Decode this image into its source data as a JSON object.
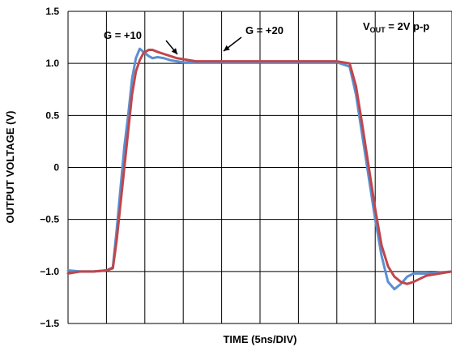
{
  "chart_data": {
    "type": "line",
    "xlabel": "TIME (5ns/DIV)",
    "ylabel": "OUTPUT VOLTAGE (V)",
    "ylim": [
      -1.5,
      1.5
    ],
    "yticks": [
      "1.5",
      "1.0",
      "0.5",
      "0",
      "−0.5",
      "−1.0",
      "−1.5"
    ],
    "x_divisions": 10,
    "y_divisions": 6,
    "grid": true,
    "annotation_vout": "2V p-p",
    "series": [
      {
        "name": "G = +10",
        "color": "#5b8fd0",
        "x": [
          0,
          1,
          2,
          3,
          3.5,
          3.8,
          4.1,
          4.4,
          4.7,
          5.0,
          5.3,
          5.6,
          5.9,
          6.3,
          6.6,
          7.0,
          7.5,
          8.0,
          8.5,
          9.0,
          9.5,
          10,
          11,
          12,
          13,
          14,
          15,
          16,
          17,
          18,
          19,
          20,
          21,
          22,
          22.5,
          23,
          23.5,
          24,
          24.5,
          25,
          25.5,
          26,
          26.5,
          27,
          27.5,
          28,
          29,
          30
        ],
        "y": [
          -0.99,
          -1.0,
          -1.0,
          -0.99,
          -0.96,
          -0.6,
          -0.2,
          0.2,
          0.5,
          0.85,
          1.05,
          1.14,
          1.11,
          1.07,
          1.05,
          1.06,
          1.05,
          1.03,
          1.02,
          1.01,
          1.01,
          1.01,
          1.01,
          1.01,
          1.01,
          1.01,
          1.01,
          1.01,
          1.01,
          1.01,
          1.01,
          1.01,
          1.01,
          0.97,
          0.7,
          0.3,
          -0.1,
          -0.5,
          -0.85,
          -1.1,
          -1.17,
          -1.12,
          -1.05,
          -1.02,
          -1.02,
          -1.02,
          -1.01,
          -1.0
        ]
      },
      {
        "name": "G = +20",
        "color": "#c0464b",
        "x": [
          0,
          1,
          2,
          3,
          3.5,
          3.8,
          4.1,
          4.4,
          4.7,
          5.0,
          5.3,
          5.6,
          5.9,
          6.3,
          6.6,
          7.0,
          7.5,
          8.0,
          8.5,
          9.0,
          9.5,
          10,
          11,
          12,
          13,
          14,
          15,
          16,
          17,
          18,
          19,
          20,
          21,
          22,
          22.5,
          23,
          23.5,
          24,
          24.5,
          25,
          25.5,
          26,
          26.5,
          27,
          27.5,
          28,
          29,
          30
        ],
        "y": [
          -1.02,
          -1.0,
          -1.0,
          -0.99,
          -0.97,
          -0.7,
          -0.35,
          0.0,
          0.35,
          0.7,
          0.92,
          1.03,
          1.1,
          1.13,
          1.13,
          1.11,
          1.09,
          1.07,
          1.05,
          1.04,
          1.03,
          1.02,
          1.02,
          1.02,
          1.02,
          1.02,
          1.02,
          1.02,
          1.02,
          1.02,
          1.02,
          1.02,
          1.02,
          1.0,
          0.78,
          0.4,
          0.0,
          -0.4,
          -0.75,
          -0.95,
          -1.05,
          -1.1,
          -1.12,
          -1.1,
          -1.07,
          -1.04,
          -1.02,
          -1.0
        ]
      }
    ],
    "annotations": [
      {
        "text": "G = +10",
        "series": 0
      },
      {
        "text": "G = +20",
        "series": 1
      }
    ]
  }
}
